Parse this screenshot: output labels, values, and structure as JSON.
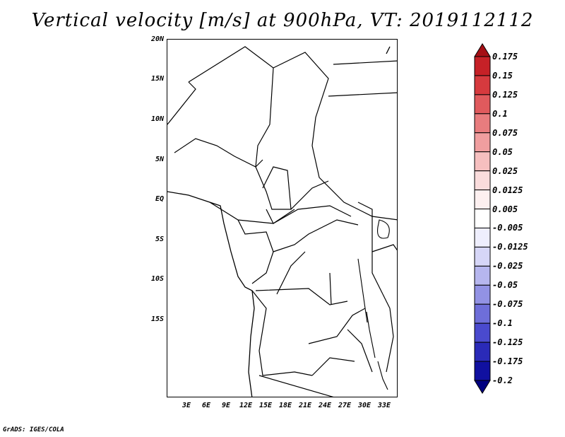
{
  "title": "Vertical velocity [m/s] at 900hPa, VT: 2019112112",
  "footer": "GrADS: IGES/COLA",
  "map": {
    "lat_labels": [
      "20N",
      "15N",
      "10N",
      "5N",
      "EQ",
      "5S",
      "10S",
      "15S"
    ],
    "lon_labels": [
      "3E",
      "6E",
      "9E",
      "12E",
      "15E",
      "18E",
      "21E",
      "24E",
      "27E",
      "30E",
      "33E"
    ]
  },
  "colorbar": {
    "levels": [
      "0.175",
      "0.15",
      "0.125",
      "0.1",
      "0.075",
      "0.05",
      "0.025",
      "0.0125",
      "0.005",
      "-0.005",
      "-0.0125",
      "-0.025",
      "-0.05",
      "-0.075",
      "-0.1",
      "-0.125",
      "-0.175",
      "-0.2"
    ],
    "colors": [
      "#a50f15",
      "#c62127",
      "#d63a3e",
      "#e05a5d",
      "#e87c7e",
      "#f09e9f",
      "#f6bfbf",
      "#fadcdc",
      "#fdf0f0",
      "#ffffff",
      "#eeeefd",
      "#d6d6f7",
      "#b6b6ee",
      "#9292e4",
      "#6e6ed9",
      "#4a4ace",
      "#2a2ab8",
      "#1010a0",
      "#000080"
    ]
  }
}
